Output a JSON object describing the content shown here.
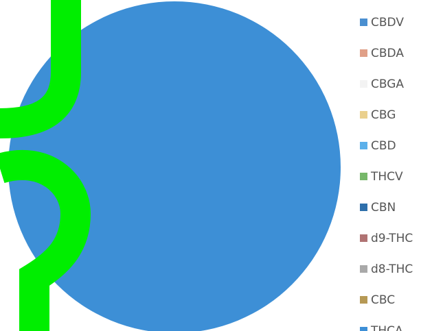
{
  "chart_data": {
    "type": "pie",
    "categories": [
      "CBDV",
      "CBDA",
      "CBGA",
      "CBG",
      "CBD",
      "THCV",
      "CBN",
      "d9-THC",
      "d8-THC",
      "CBC",
      "THCA"
    ],
    "values": [
      0,
      0,
      0,
      0,
      0,
      0,
      0,
      0,
      0,
      0,
      100
    ],
    "colors": [
      "#4a8fd0",
      "#e0a088",
      "#f3f3f3",
      "#ead08e",
      "#5cb0ea",
      "#77b86a",
      "#2e6fab",
      "#b07373",
      "#a9a9a9",
      "#b69955",
      "#3d8fd6"
    ],
    "legend_position": "right",
    "title": "",
    "overlay_marks_color": "#00ee00"
  }
}
